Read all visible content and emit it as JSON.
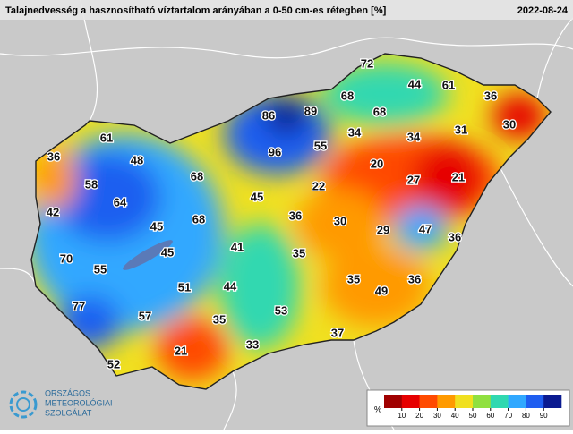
{
  "header": {
    "title": "Talajnedvesség a hasznosítható víztartalom arányában a 0-50 cm-es rétegben [%]",
    "date": "2022-08-24"
  },
  "stations": [
    72,
    44,
    61,
    36,
    68,
    89,
    86,
    68,
    30,
    31,
    34,
    34,
    61,
    55,
    96,
    36,
    48,
    20,
    68,
    27,
    21,
    58,
    22,
    64,
    45,
    42,
    36,
    30,
    45,
    68,
    29,
    47,
    36,
    45,
    41,
    70,
    35,
    55,
    35,
    49,
    36,
    51,
    44,
    77,
    53,
    57,
    35,
    37,
    33,
    21,
    52
  ],
  "legend": {
    "unit": "%",
    "ticks": [
      10,
      20,
      30,
      40,
      50,
      60,
      70,
      80,
      90
    ],
    "colors": [
      "#a00000",
      "#e60000",
      "#ff4a00",
      "#ff9a00",
      "#f0e020",
      "#90e040",
      "#30d8b0",
      "#30a8ff",
      "#1f5ef0",
      "#0a1a90"
    ]
  },
  "logo": {
    "line1": "ORSZÁGOS",
    "line2": "METEOROLÓGIAI",
    "line3": "SZOLGÁLAT"
  }
}
